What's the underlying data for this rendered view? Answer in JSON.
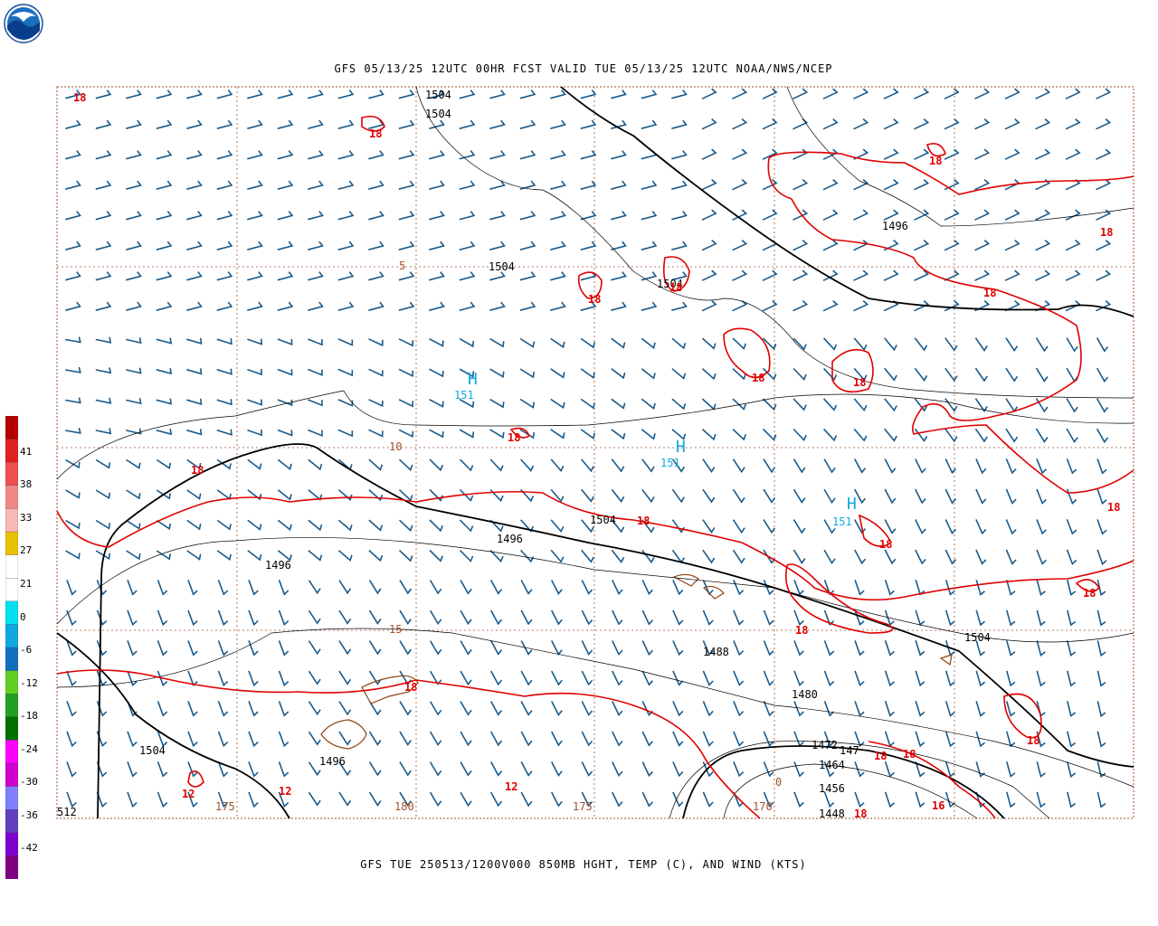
{
  "header": {
    "title": "GFS 05/13/25 12UTC 00HR FCST VALID TUE 05/13/25 12UTC NOAA/NWS/NCEP",
    "logo_text": "NOAA"
  },
  "footer": {
    "caption": "GFS TUE 250513/1200V000 850MB HGHT, TEMP (C), AND WIND (KTS)"
  },
  "legend": {
    "colors": [
      "#b40000",
      "#e02020",
      "#f05050",
      "#f08888",
      "#f8b8b8",
      "#e8c000",
      "#ffffff",
      "#ffffff",
      "#00e0f0",
      "#10a8e0",
      "#1070c0",
      "#60d020",
      "#20a020",
      "#007000",
      "#ff00ff",
      "#d000d0",
      "#8080ff",
      "#6040c0",
      "#8000d0",
      "#800080"
    ],
    "labels": [
      "41",
      "38",
      "33",
      "27",
      "21",
      "0",
      "-6",
      "-12",
      "-18",
      "-24",
      "-30",
      "-36",
      "-42"
    ]
  },
  "map": {
    "height_labels": [
      {
        "id": "h1504a",
        "text": "1504"
      },
      {
        "id": "h1504b",
        "text": "1504"
      },
      {
        "id": "h1504c",
        "text": "1504"
      },
      {
        "id": "h1504d",
        "text": "1504"
      },
      {
        "id": "h1504e",
        "text": "1504"
      },
      {
        "id": "h1504f",
        "text": "1504"
      },
      {
        "id": "h1504g",
        "text": "1504"
      },
      {
        "id": "h1496a",
        "text": "1496"
      },
      {
        "id": "h1496b",
        "text": "1496"
      },
      {
        "id": "h1496c",
        "text": "1496"
      },
      {
        "id": "h1496d",
        "text": "1496"
      },
      {
        "id": "h1488",
        "text": "1488"
      },
      {
        "id": "h1480",
        "text": "1480"
      },
      {
        "id": "h1472",
        "text": "1472"
      },
      {
        "id": "h147",
        "text": "147"
      },
      {
        "id": "h1464",
        "text": "1464"
      },
      {
        "id": "h1456",
        "text": "1456"
      },
      {
        "id": "h1448",
        "text": "1448"
      },
      {
        "id": "h512",
        "text": "512"
      }
    ],
    "temp_labels": [
      {
        "id": "t18a",
        "text": "18"
      },
      {
        "id": "t18b",
        "text": "18"
      },
      {
        "id": "t18c",
        "text": "18"
      },
      {
        "id": "t18d",
        "text": "18"
      },
      {
        "id": "t18e",
        "text": "18"
      },
      {
        "id": "t18f",
        "text": "18"
      },
      {
        "id": "t18g",
        "text": "18"
      },
      {
        "id": "t18h",
        "text": "18"
      },
      {
        "id": "t18i",
        "text": "18"
      },
      {
        "id": "t18j",
        "text": "18"
      },
      {
        "id": "t18k",
        "text": "18"
      },
      {
        "id": "t18l",
        "text": "18"
      },
      {
        "id": "t18m",
        "text": "18"
      },
      {
        "id": "t18n",
        "text": "18"
      },
      {
        "id": "t18o",
        "text": "18"
      },
      {
        "id": "t18p",
        "text": "18"
      },
      {
        "id": "t18q",
        "text": "18"
      },
      {
        "id": "t18r",
        "text": "18"
      },
      {
        "id": "t18s",
        "text": "18"
      },
      {
        "id": "t18t",
        "text": "18"
      },
      {
        "id": "t18u",
        "text": "18"
      },
      {
        "id": "t12a",
        "text": "12"
      },
      {
        "id": "t12b",
        "text": "12"
      },
      {
        "id": "t12c",
        "text": "12"
      },
      {
        "id": "t16",
        "text": "16"
      }
    ],
    "highs": [
      {
        "id": "hi1",
        "letter": "H",
        "value": "151"
      },
      {
        "id": "hi2",
        "letter": "H",
        "value": "151"
      },
      {
        "id": "hi3",
        "letter": "H",
        "value": "151"
      }
    ],
    "grid_labels": [
      {
        "id": "g5",
        "text": "5"
      },
      {
        "id": "g10",
        "text": "10"
      },
      {
        "id": "g15",
        "text": "15"
      },
      {
        "id": "g175a",
        "text": "175"
      },
      {
        "id": "g180",
        "text": "180"
      },
      {
        "id": "g175b",
        "text": "175"
      },
      {
        "id": "g170",
        "text": "170"
      },
      {
        "id": "g0",
        "text": "0"
      }
    ],
    "colors": {
      "height_contour": "#000000",
      "temp_contour": "#e00000",
      "wind_barb": "#1a5a8a",
      "high_marker": "#10a8e0",
      "grid": "#a0522d",
      "coast": "#8b4513"
    }
  }
}
